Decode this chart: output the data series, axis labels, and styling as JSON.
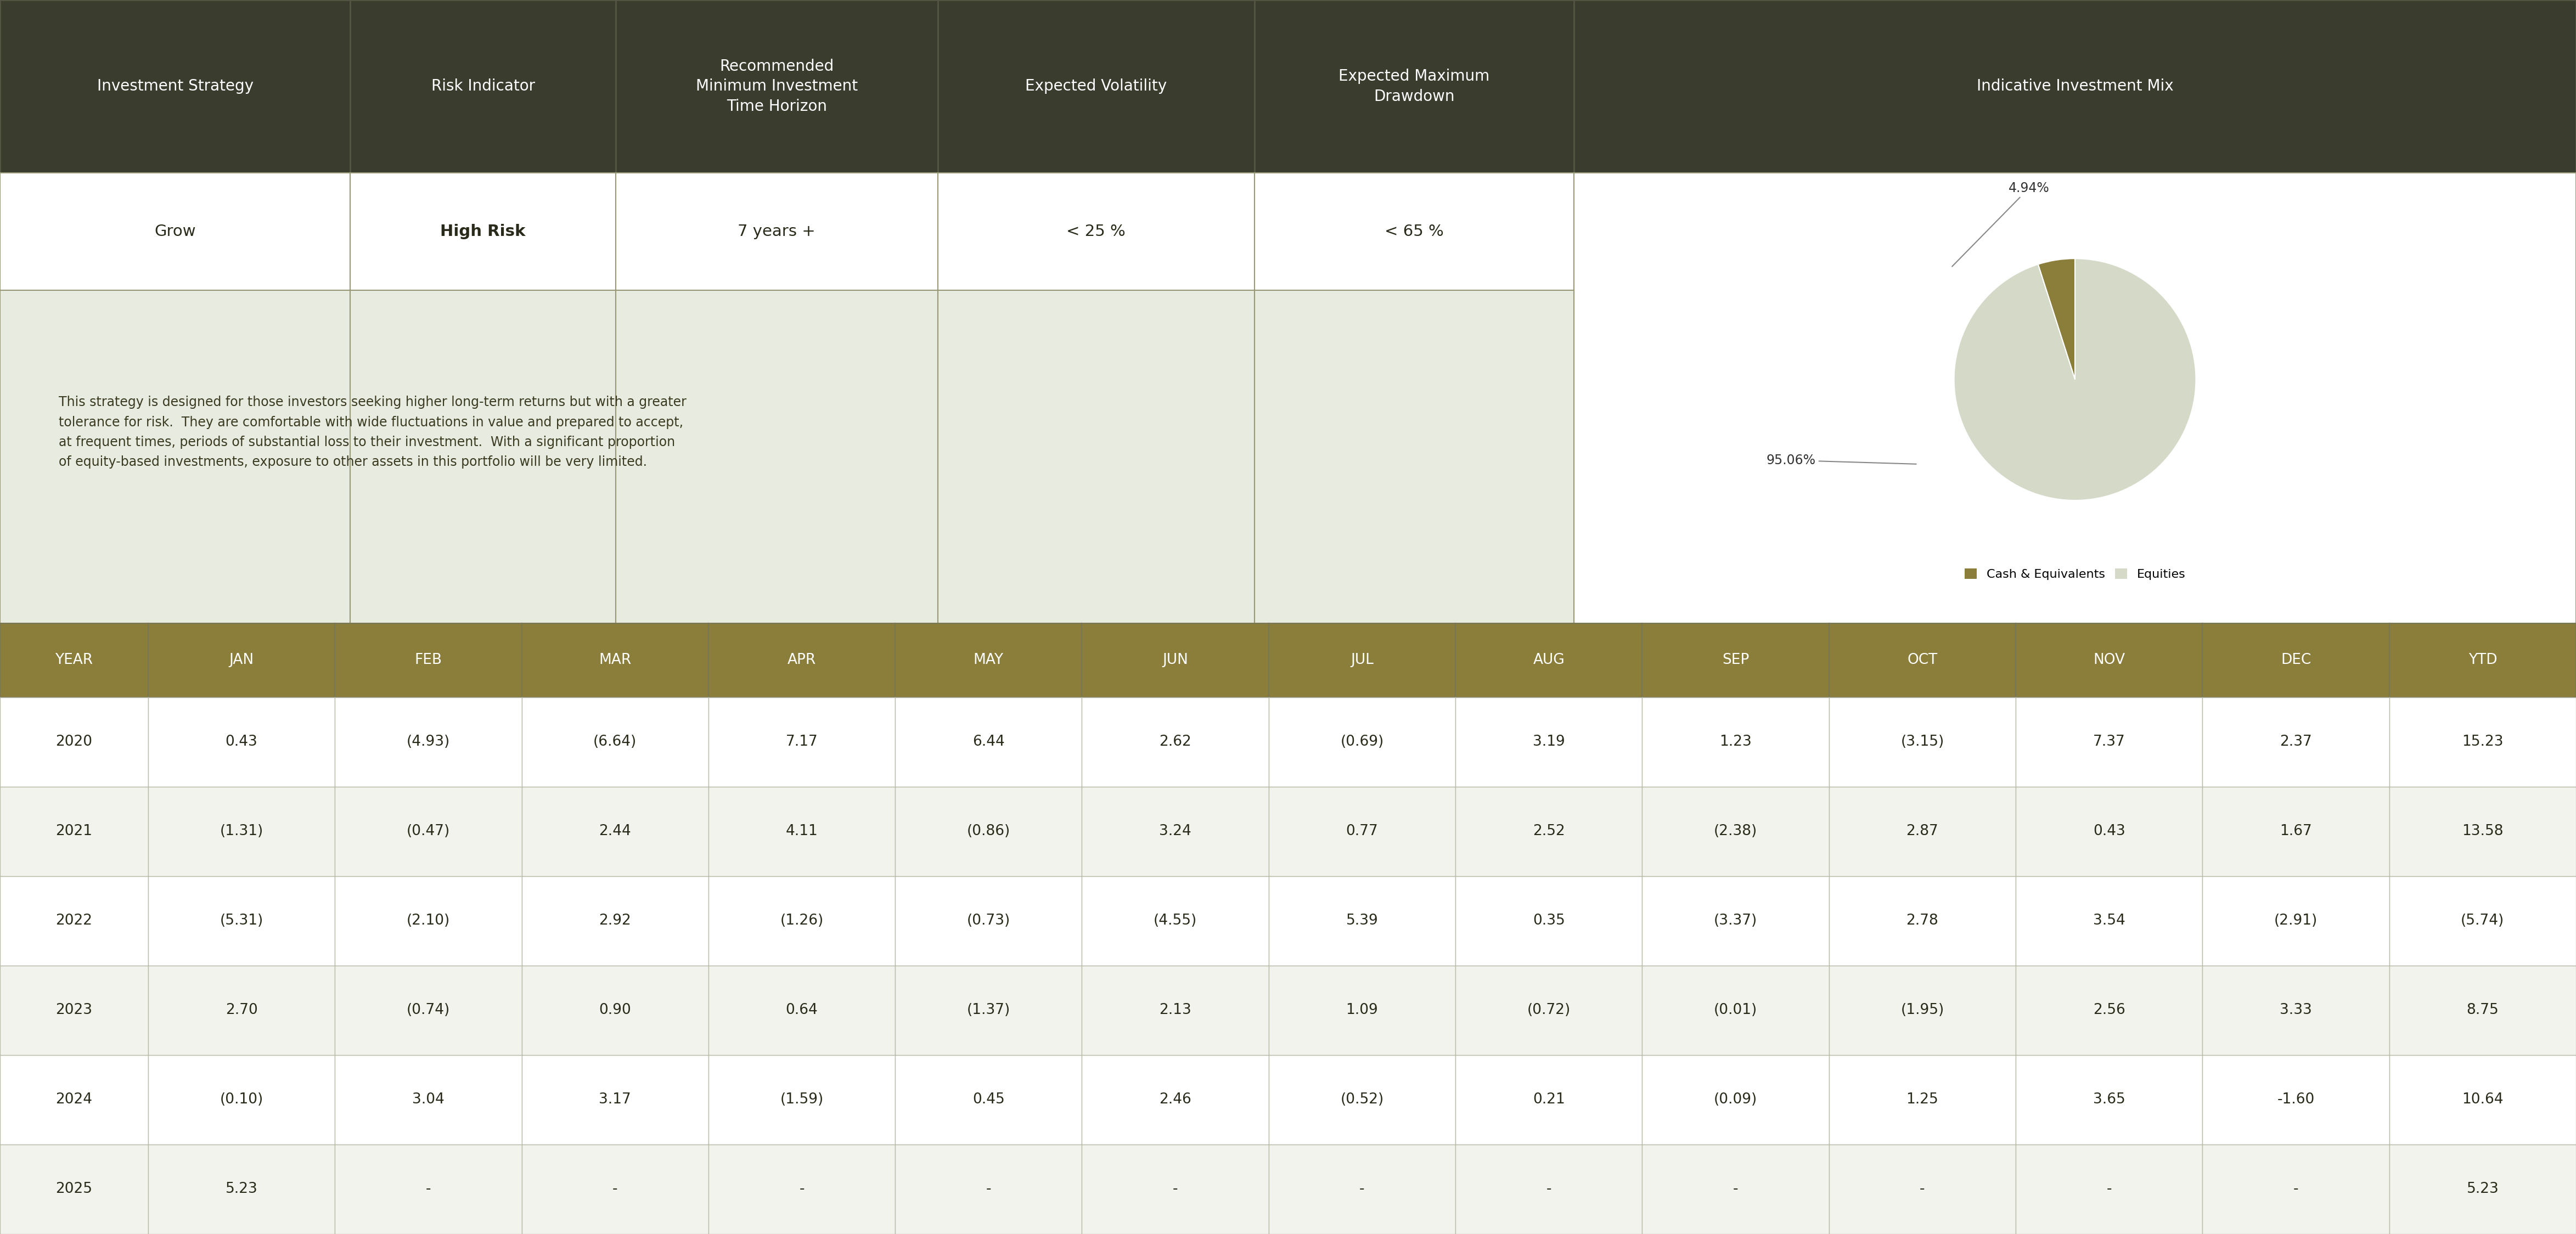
{
  "header_bg": "#3a3c2e",
  "header_text_color": "#ffffff",
  "header_cols": [
    "Investment Strategy",
    "Risk Indicator",
    "Recommended\nMinimum Investment\nTime Horizon",
    "Expected Volatility",
    "Expected Maximum\nDrawdown",
    "Indicative Investment Mix"
  ],
  "info_row": [
    "Grow",
    "High Risk",
    "7 years +",
    "< 25 %",
    "< 65 %"
  ],
  "description": "This strategy is designed for those investors seeking higher long-term returns but with a greater\ntolerance for risk.  They are comfortable with wide fluctuations in value and prepared to accept,\nat frequent times, periods of substantial loss to their investment.  With a significant proportion\nof equity-based investments, exposure to other assets in this portfolio will be very limited.",
  "pie_values": [
    4.94,
    95.06
  ],
  "pie_colors": [
    "#8b7d3a",
    "#d4d9c8"
  ],
  "pie_labels": [
    "4.94%",
    "95.06%"
  ],
  "pie_legend": [
    "Cash & Equivalents",
    "Equities"
  ],
  "table_header_bg": "#8b7d3a",
  "table_header_text": "#ffffff",
  "table_row_bg_even": "#ffffff",
  "table_row_bg_odd": "#f2f3ec",
  "table_border": "#cccccc",
  "years": [
    "2020",
    "2021",
    "2022",
    "2023",
    "2024",
    "2025"
  ],
  "months": [
    "JAN",
    "FEB",
    "MAR",
    "APR",
    "MAY",
    "JUN",
    "JUL",
    "AUG",
    "SEP",
    "OCT",
    "NOV",
    "DEC",
    "YTD"
  ],
  "data": [
    [
      "0.43",
      "(4.93)",
      "(6.64)",
      "7.17",
      "6.44",
      "2.62",
      "(0.69)",
      "3.19",
      "1.23",
      "(3.15)",
      "7.37",
      "2.37",
      "15.23"
    ],
    [
      "(1.31)",
      "(0.47)",
      "2.44",
      "4.11",
      "(0.86)",
      "3.24",
      "0.77",
      "2.52",
      "(2.38)",
      "2.87",
      "0.43",
      "1.67",
      "13.58"
    ],
    [
      "(5.31)",
      "(2.10)",
      "2.92",
      "(1.26)",
      "(0.73)",
      "(4.55)",
      "5.39",
      "0.35",
      "(3.37)",
      "2.78",
      "3.54",
      "(2.91)",
      "(5.74)"
    ],
    [
      "2.70",
      "(0.74)",
      "0.90",
      "0.64",
      "(1.37)",
      "2.13",
      "1.09",
      "(0.72)",
      "(0.01)",
      "(1.95)",
      "2.56",
      "3.33",
      "8.75"
    ],
    [
      "(0.10)",
      "3.04",
      "3.17",
      "(1.59)",
      "0.45",
      "2.46",
      "(0.52)",
      "0.21",
      "(0.09)",
      "1.25",
      "3.65",
      "-1.60",
      "10.64"
    ],
    [
      "5.23",
      "-",
      "-",
      "-",
      "-",
      "-",
      "-",
      "-",
      "-",
      "-",
      "-",
      "-",
      "5.23"
    ]
  ],
  "info_bg": "#e8ebe0",
  "border_color": "#999977",
  "fig_bg": "#ffffff",
  "header_fontsize": 20,
  "info_fontsize": 21,
  "desc_fontsize": 17,
  "table_hdr_fontsize": 19,
  "table_data_fontsize": 19
}
